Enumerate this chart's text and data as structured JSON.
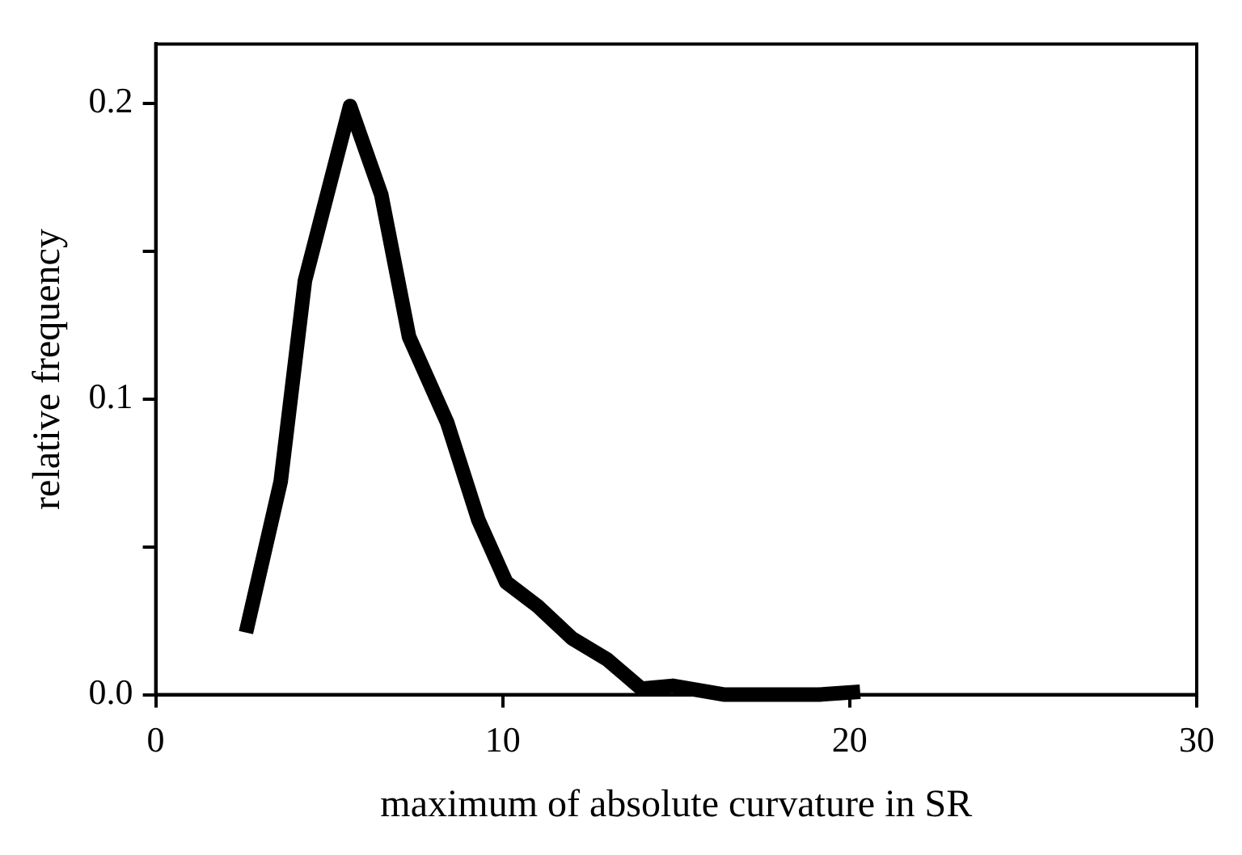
{
  "chart_data": {
    "type": "line",
    "xlabel": "maximum of absolute curvature in SR",
    "ylabel": "relative frequency",
    "series": [
      {
        "color": "#000000",
        "x": [
          2.6,
          3.6,
          4.3,
          5.6,
          6.5,
          7.3,
          8.4,
          9.3,
          10.1,
          11.0,
          12.0,
          13.0,
          14.0,
          14.9,
          16.4,
          19.1,
          20.3
        ],
        "values": [
          0.021,
          0.072,
          0.14,
          0.199,
          0.169,
          0.121,
          0.092,
          0.059,
          0.038,
          0.03,
          0.019,
          0.012,
          0.002,
          0.003,
          0,
          0,
          0.001
        ]
      }
    ],
    "xlim": [
      0,
      30
    ],
    "xticks": [
      0,
      10,
      20,
      30
    ],
    "ylim": [
      0,
      0.22
    ],
    "yticks": [
      {
        "value": 0,
        "label": "0.0"
      },
      {
        "value": 0.05,
        "label": null
      },
      {
        "value": 0.1,
        "label": "0.1"
      },
      {
        "value": 0.15,
        "label": null
      },
      {
        "value": 0.2,
        "label": "0.2"
      }
    ],
    "grid": false,
    "legend": false,
    "marker": "none",
    "line_style": "solid"
  }
}
